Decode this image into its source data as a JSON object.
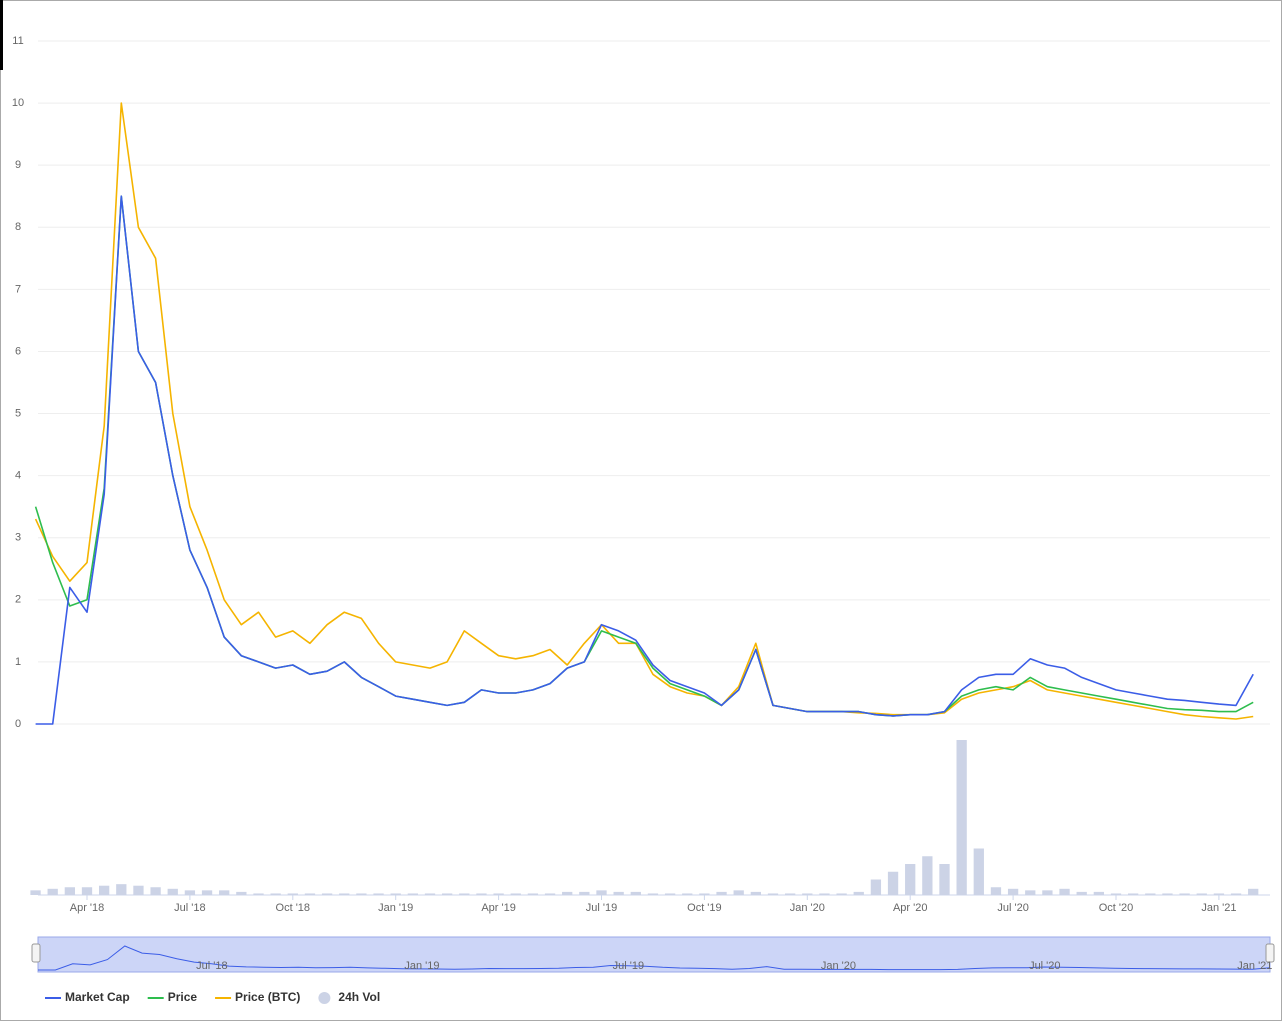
{
  "chart_data": {
    "type": "line",
    "categories": [
      null,
      null,
      null,
      "Apr '18",
      null,
      null,
      null,
      null,
      null,
      "Jul '18",
      null,
      null,
      null,
      null,
      null,
      "Oct '18",
      null,
      null,
      null,
      null,
      null,
      "Jan '19",
      null,
      null,
      null,
      null,
      null,
      "Apr '19",
      null,
      null,
      null,
      null,
      null,
      "Jul '19",
      null,
      null,
      null,
      null,
      null,
      "Oct '19",
      null,
      null,
      null,
      null,
      null,
      "Jan '20",
      null,
      null,
      null,
      null,
      null,
      "Apr '20",
      null,
      null,
      null,
      null,
      null,
      "Jul '20",
      null,
      null,
      null,
      null,
      null,
      "Oct '20",
      null,
      null,
      null,
      null,
      null,
      "Jan '21",
      null,
      null
    ],
    "series": [
      {
        "name": "Market Cap",
        "color": "#3b5de7",
        "values": [
          0,
          0,
          2.2,
          1.8,
          3.7,
          8.5,
          6.0,
          5.5,
          4.0,
          2.8,
          2.2,
          1.4,
          1.1,
          1.0,
          0.9,
          0.95,
          0.8,
          0.85,
          1.0,
          0.75,
          0.6,
          0.45,
          0.4,
          0.35,
          0.3,
          0.35,
          0.55,
          0.5,
          0.5,
          0.55,
          0.65,
          0.9,
          1.0,
          1.6,
          1.5,
          1.35,
          0.95,
          0.7,
          0.6,
          0.5,
          0.3,
          0.55,
          1.2,
          0.3,
          0.25,
          0.2,
          0.2,
          0.2,
          0.2,
          0.15,
          0.13,
          0.15,
          0.15,
          0.2,
          0.55,
          0.75,
          0.8,
          0.8,
          1.05,
          0.95,
          0.9,
          0.75,
          0.65,
          0.55,
          0.5,
          0.45,
          0.4,
          0.38,
          0.35,
          0.32,
          0.3,
          0.8
        ]
      },
      {
        "name": "Price",
        "color": "#2ebd4e",
        "values": [
          3.5,
          2.6,
          1.9,
          2.0,
          3.8,
          8.5,
          6.0,
          5.5,
          4.0,
          2.8,
          2.2,
          1.4,
          1.1,
          1.0,
          0.9,
          0.95,
          0.8,
          0.85,
          1.0,
          0.75,
          0.6,
          0.45,
          0.4,
          0.35,
          0.3,
          0.35,
          0.55,
          0.5,
          0.5,
          0.55,
          0.65,
          0.9,
          1.0,
          1.5,
          1.4,
          1.3,
          0.9,
          0.65,
          0.55,
          0.45,
          0.3,
          0.55,
          1.2,
          0.3,
          0.25,
          0.2,
          0.2,
          0.2,
          0.2,
          0.15,
          0.13,
          0.15,
          0.15,
          0.2,
          0.45,
          0.55,
          0.6,
          0.55,
          0.75,
          0.6,
          0.55,
          0.5,
          0.45,
          0.4,
          0.35,
          0.3,
          0.25,
          0.23,
          0.22,
          0.2,
          0.2,
          0.35
        ]
      },
      {
        "name": "Price (BTC)",
        "color": "#f5b400",
        "values": [
          3.3,
          2.7,
          2.3,
          2.6,
          4.8,
          10.0,
          8.0,
          7.5,
          5.0,
          3.5,
          2.8,
          2.0,
          1.6,
          1.8,
          1.4,
          1.5,
          1.3,
          1.6,
          1.8,
          1.7,
          1.3,
          1.0,
          0.95,
          0.9,
          1.0,
          1.5,
          1.3,
          1.1,
          1.05,
          1.1,
          1.2,
          0.95,
          1.3,
          1.6,
          1.3,
          1.3,
          0.8,
          0.6,
          0.5,
          0.45,
          0.3,
          0.6,
          1.3,
          0.3,
          0.25,
          0.2,
          0.2,
          0.2,
          0.18,
          0.17,
          0.15,
          0.15,
          0.15,
          0.18,
          0.4,
          0.5,
          0.55,
          0.6,
          0.7,
          0.55,
          0.5,
          0.45,
          0.4,
          0.35,
          0.3,
          0.25,
          0.2,
          0.15,
          0.12,
          0.1,
          0.08,
          0.12
        ]
      },
      {
        "name": "24h Vol",
        "color": "#ccd3e6",
        "axis": "y2",
        "values": [
          3,
          4,
          5,
          5,
          6,
          7,
          6,
          5,
          4,
          3,
          3,
          3,
          2,
          1,
          1,
          1,
          1,
          1,
          1,
          1,
          1,
          1,
          1,
          1,
          1,
          1,
          1,
          1,
          1,
          1,
          1,
          2,
          2,
          3,
          2,
          2,
          1,
          1,
          1,
          1,
          2,
          3,
          2,
          1,
          1,
          1,
          1,
          1,
          2,
          10,
          15,
          20,
          25,
          20,
          100,
          30,
          5,
          4,
          3,
          3,
          4,
          2,
          2,
          1,
          1,
          1,
          1,
          1,
          1,
          1,
          1,
          4
        ]
      }
    ],
    "ylim": [
      0,
      11
    ],
    "yticks": [
      0,
      1,
      2,
      3,
      4,
      5,
      6,
      7,
      8,
      9,
      10,
      11
    ],
    "y2lim": [
      0,
      100
    ],
    "grid": true
  }
}
